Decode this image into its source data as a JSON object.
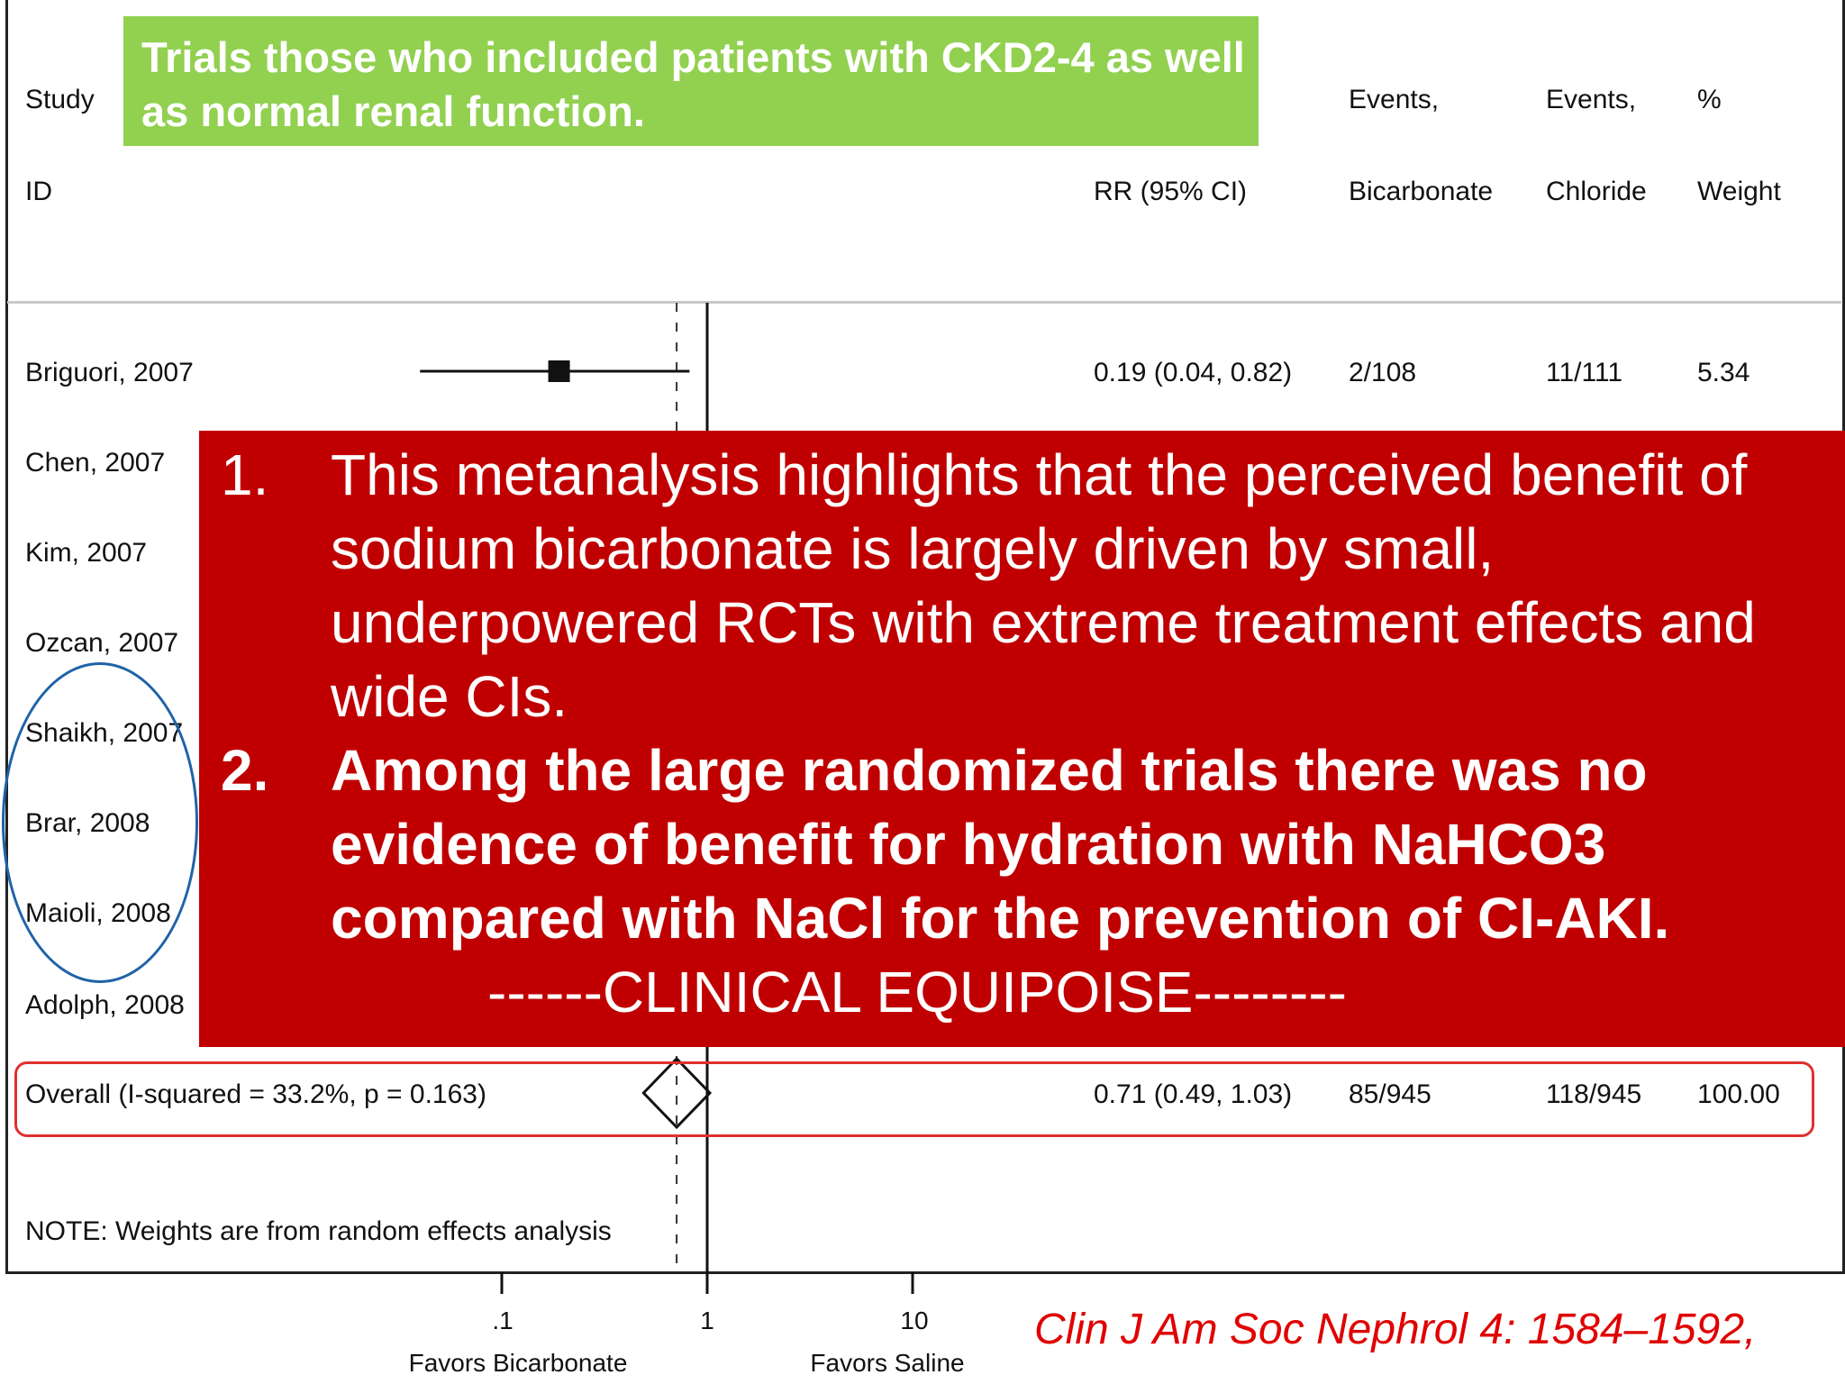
{
  "headers": {
    "study": "Study",
    "id": "ID",
    "rr": "RR (95% CI)",
    "events_bicarb_1": "Events,",
    "events_bicarb_2": "Bicarbonate",
    "events_chloride_1": "Events,",
    "events_chloride_2": "Chloride",
    "weight_1": "%",
    "weight_2": "Weight"
  },
  "green_note": "Trials those who included patients with CKD2-4 as well as normal renal function.",
  "studies": [
    "Briguori, 2007",
    "Chen, 2007",
    "Kim, 2007",
    "Ozcan, 2007",
    "Shaikh, 2007",
    "Brar, 2008",
    "Maioli, 2008",
    "Adolph, 2008"
  ],
  "briguori_row": {
    "rr": "0.19 (0.04, 0.82)",
    "bicarbonate": "2/108",
    "chloride": "11/111",
    "weight": "5.34"
  },
  "overall_row": {
    "label": "Overall  (I-squared = 33.2%, p = 0.163)",
    "rr": "0.71 (0.49, 1.03)",
    "bicarbonate": "85/945",
    "chloride": "118/945",
    "weight": "100.00"
  },
  "note": "NOTE: Weights are from random effects analysis",
  "red_box": {
    "item1_num": "1.",
    "item1": "This metanalysis highlights that the perceived benefit of sodium bicarbonate is largely driven by small, underpowered RCTs with extreme treatment effects and wide CIs.",
    "item2_num": "2.",
    "item2": "Among the large randomized trials there was no evidence of benefit for hydration with NaHCO3 compared with NaCl for the prevention of CI-AKI.",
    "equipoise": "------CLINICAL EQUIPOISE--------"
  },
  "axis": {
    "ticks": [
      ".1",
      "1",
      "10"
    ],
    "left_label": "Favors Bicarbonate",
    "right_label": "Favors Saline"
  },
  "citation": "Clin J Am Soc Nephrol 4: 1584–1592,",
  "chart_data": {
    "type": "forest",
    "scale": "log",
    "xlim": [
      0.1,
      10
    ],
    "null_line": 1,
    "pooled_line": 0.71,
    "tick_values": [
      0.1,
      1,
      10
    ],
    "studies": [
      {
        "study": "Briguori, 2007",
        "rr": 0.19,
        "ci": [
          0.04,
          0.82
        ],
        "bicarbonate": "2/108",
        "chloride": "11/111",
        "weight": 5.34
      }
    ],
    "overall": {
      "rr": 0.71,
      "ci": [
        0.49,
        1.03
      ],
      "bicarbonate": "85/945",
      "chloride": "118/945",
      "weight": 100.0,
      "i_squared": "33.2%",
      "p": 0.163
    }
  }
}
